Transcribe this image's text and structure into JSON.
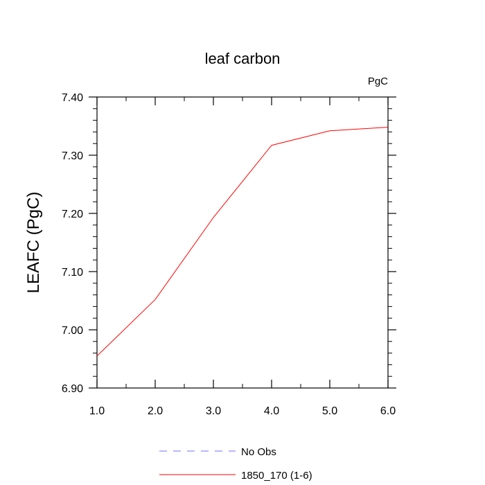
{
  "chart_data": {
    "type": "line",
    "title": "leaf carbon",
    "units_label": "PgC",
    "ylabel": "LEAFC  (PgC)",
    "xlabel": "",
    "xlim": [
      1.0,
      6.0
    ],
    "ylim": [
      6.9,
      7.4
    ],
    "x_ticks": [
      "1.0",
      "2.0",
      "3.0",
      "4.0",
      "5.0",
      "6.0"
    ],
    "y_ticks": [
      "6.90",
      "7.00",
      "7.10",
      "7.20",
      "7.30",
      "7.40"
    ],
    "x": [
      1,
      2,
      3,
      4,
      5,
      6
    ],
    "series": [
      {
        "name": "1850_170 (1-6)",
        "color": "#ff0000",
        "dash": "solid",
        "values": [
          6.955,
          7.052,
          7.193,
          7.317,
          7.342,
          7.348
        ]
      }
    ],
    "legend": [
      {
        "label": "No Obs",
        "color": "#6f6fff",
        "dash": "dashed"
      },
      {
        "label": "1850_170 (1-6)",
        "color": "#ff0000",
        "dash": "solid"
      }
    ],
    "legend_position": "bottom",
    "grid": false
  }
}
